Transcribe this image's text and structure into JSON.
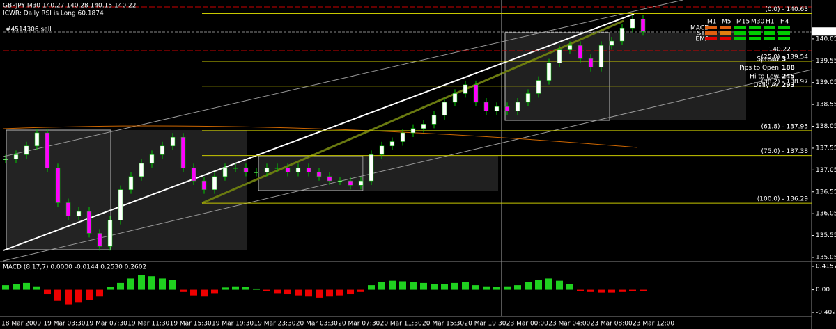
{
  "header": {
    "symbol_line": "GBPJPY,M30  140.27 140.28 140.15 140.22",
    "indicator_line": "ICWR: Daily RSI is Long 60.1874",
    "order_label": "#4514306 sell"
  },
  "price_axis": {
    "ylim": [
      134.97,
      140.94
    ],
    "ticks": [
      140.05,
      139.55,
      139.05,
      138.55,
      138.05,
      137.55,
      137.05,
      136.55,
      136.05,
      135.55,
      135.05
    ],
    "current": 140.22
  },
  "fib_levels": [
    {
      "text": "(0.0) - 140.63",
      "price": 140.63
    },
    {
      "text": "(25.0) - 139.54",
      "price": 139.54
    },
    {
      "text": "(38.2) - 138.97",
      "price": 138.97
    },
    {
      "text": "(61.8) - 137.95",
      "price": 137.95
    },
    {
      "text": "(75.0) - 137.38",
      "price": 137.38
    },
    {
      "text": "(100.0) - 136.29",
      "price": 136.29
    }
  ],
  "closes": [
    137.3,
    137.4,
    137.6,
    137.9,
    137.1,
    136.3,
    136.0,
    136.1,
    135.6,
    135.3,
    135.9,
    136.6,
    136.9,
    137.2,
    137.4,
    137.6,
    137.8,
    137.1,
    136.8,
    136.6,
    136.9,
    137.1,
    137.1,
    137.0,
    137.0,
    137.1,
    137.1,
    137.0,
    137.1,
    137.0,
    136.9,
    136.8,
    136.8,
    136.7,
    136.8,
    137.4,
    137.6,
    137.7,
    137.9,
    138.0,
    138.1,
    138.3,
    138.6,
    138.8,
    139.0,
    138.6,
    138.4,
    138.5,
    138.4,
    138.6,
    138.8,
    139.1,
    139.5,
    139.8,
    139.9,
    139.6,
    139.4,
    139.9,
    140.0,
    140.3,
    140.5,
    140.22
  ],
  "macd": {
    "label": "MACD (8,17,7) 0.0000 -0.0144 0.2530 0.2602",
    "ylim": [
      -0.476,
      0.478
    ],
    "ticks": [
      0.4157,
      {
        "value": 0,
        "label": "0.00"
      },
      -0.402
    ],
    "histogram": [
      0.08,
      0.1,
      0.12,
      0.06,
      -0.08,
      -0.2,
      -0.26,
      -0.22,
      -0.18,
      -0.12,
      0.05,
      0.12,
      0.2,
      0.26,
      0.24,
      0.2,
      0.18,
      -0.04,
      -0.1,
      -0.12,
      -0.06,
      0.04,
      0.06,
      0.05,
      0.02,
      -0.03,
      -0.06,
      -0.08,
      -0.1,
      -0.12,
      -0.14,
      -0.12,
      -0.1,
      -0.08,
      -0.04,
      0.08,
      0.14,
      0.16,
      0.15,
      0.14,
      0.12,
      0.1,
      0.1,
      0.12,
      0.14,
      0.08,
      0.06,
      0.05,
      0.06,
      0.08,
      0.14,
      0.18,
      0.2,
      0.16,
      0.1,
      -0.02,
      -0.04,
      -0.05,
      -0.05,
      -0.04,
      -0.03,
      -0.02
    ]
  },
  "time_labels": [
    "18 Mar 2009",
    "19 Mar 03:30",
    "19 Mar 07:30",
    "19 Mar 11:30",
    "19 Mar 15:30",
    "19 Mar 19:30",
    "19 Mar 23:30",
    "20 Mar 03:30",
    "20 Mar 07:30",
    "20 Mar 11:30",
    "20 Mar 15:30",
    "20 Mar 19:30",
    "23 Mar 00:00",
    "23 Mar 04:00",
    "23 Mar 08:00",
    "23 Mar 12:00"
  ],
  "signal_grid": {
    "columns": [
      "M1",
      "M5",
      "M15",
      "M30",
      "H1",
      "H4"
    ],
    "rows": [
      "MACD",
      "STR",
      "EMA"
    ]
  },
  "info_panel": {
    "price": "140.22",
    "rows": [
      {
        "label": "Spread",
        "value": "3"
      },
      {
        "label": "Pips to Open",
        "value": "188"
      },
      {
        "label": "Hi to Low",
        "value": "245"
      },
      {
        "label": "Daily Av",
        "value": "293"
      }
    ]
  }
}
